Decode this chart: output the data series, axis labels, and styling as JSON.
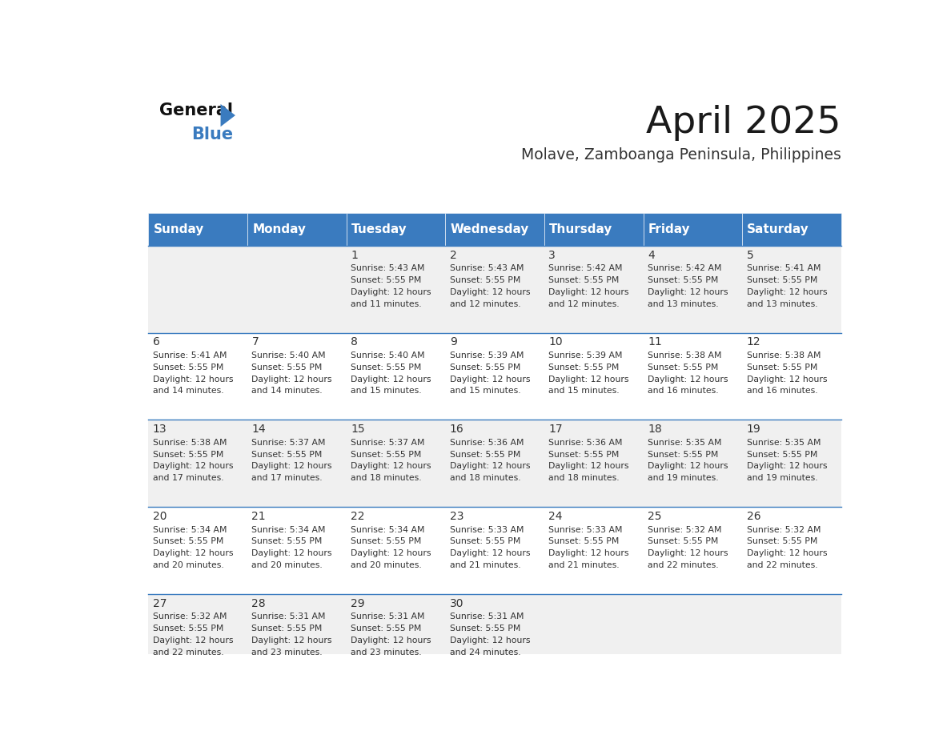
{
  "title": "April 2025",
  "subtitle": "Molave, Zamboanga Peninsula, Philippines",
  "header_bg_color": "#3a7bbf",
  "header_text_color": "#ffffff",
  "weekdays": [
    "Sunday",
    "Monday",
    "Tuesday",
    "Wednesday",
    "Thursday",
    "Friday",
    "Saturday"
  ],
  "row_bg_even": "#f0f0f0",
  "row_bg_odd": "#ffffff",
  "cell_border_color": "#3a7bbf",
  "day_number_color": "#333333",
  "cell_text_color": "#333333",
  "days": [
    {
      "date": 1,
      "col": 2,
      "row": 0,
      "sunrise": "5:43 AM",
      "sunset": "5:55 PM",
      "daylight": "12 hours and 11 minutes."
    },
    {
      "date": 2,
      "col": 3,
      "row": 0,
      "sunrise": "5:43 AM",
      "sunset": "5:55 PM",
      "daylight": "12 hours and 12 minutes."
    },
    {
      "date": 3,
      "col": 4,
      "row": 0,
      "sunrise": "5:42 AM",
      "sunset": "5:55 PM",
      "daylight": "12 hours and 12 minutes."
    },
    {
      "date": 4,
      "col": 5,
      "row": 0,
      "sunrise": "5:42 AM",
      "sunset": "5:55 PM",
      "daylight": "12 hours and 13 minutes."
    },
    {
      "date": 5,
      "col": 6,
      "row": 0,
      "sunrise": "5:41 AM",
      "sunset": "5:55 PM",
      "daylight": "12 hours and 13 minutes."
    },
    {
      "date": 6,
      "col": 0,
      "row": 1,
      "sunrise": "5:41 AM",
      "sunset": "5:55 PM",
      "daylight": "12 hours and 14 minutes."
    },
    {
      "date": 7,
      "col": 1,
      "row": 1,
      "sunrise": "5:40 AM",
      "sunset": "5:55 PM",
      "daylight": "12 hours and 14 minutes."
    },
    {
      "date": 8,
      "col": 2,
      "row": 1,
      "sunrise": "5:40 AM",
      "sunset": "5:55 PM",
      "daylight": "12 hours and 15 minutes."
    },
    {
      "date": 9,
      "col": 3,
      "row": 1,
      "sunrise": "5:39 AM",
      "sunset": "5:55 PM",
      "daylight": "12 hours and 15 minutes."
    },
    {
      "date": 10,
      "col": 4,
      "row": 1,
      "sunrise": "5:39 AM",
      "sunset": "5:55 PM",
      "daylight": "12 hours and 15 minutes."
    },
    {
      "date": 11,
      "col": 5,
      "row": 1,
      "sunrise": "5:38 AM",
      "sunset": "5:55 PM",
      "daylight": "12 hours and 16 minutes."
    },
    {
      "date": 12,
      "col": 6,
      "row": 1,
      "sunrise": "5:38 AM",
      "sunset": "5:55 PM",
      "daylight": "12 hours and 16 minutes."
    },
    {
      "date": 13,
      "col": 0,
      "row": 2,
      "sunrise": "5:38 AM",
      "sunset": "5:55 PM",
      "daylight": "12 hours and 17 minutes."
    },
    {
      "date": 14,
      "col": 1,
      "row": 2,
      "sunrise": "5:37 AM",
      "sunset": "5:55 PM",
      "daylight": "12 hours and 17 minutes."
    },
    {
      "date": 15,
      "col": 2,
      "row": 2,
      "sunrise": "5:37 AM",
      "sunset": "5:55 PM",
      "daylight": "12 hours and 18 minutes."
    },
    {
      "date": 16,
      "col": 3,
      "row": 2,
      "sunrise": "5:36 AM",
      "sunset": "5:55 PM",
      "daylight": "12 hours and 18 minutes."
    },
    {
      "date": 17,
      "col": 4,
      "row": 2,
      "sunrise": "5:36 AM",
      "sunset": "5:55 PM",
      "daylight": "12 hours and 18 minutes."
    },
    {
      "date": 18,
      "col": 5,
      "row": 2,
      "sunrise": "5:35 AM",
      "sunset": "5:55 PM",
      "daylight": "12 hours and 19 minutes."
    },
    {
      "date": 19,
      "col": 6,
      "row": 2,
      "sunrise": "5:35 AM",
      "sunset": "5:55 PM",
      "daylight": "12 hours and 19 minutes."
    },
    {
      "date": 20,
      "col": 0,
      "row": 3,
      "sunrise": "5:34 AM",
      "sunset": "5:55 PM",
      "daylight": "12 hours and 20 minutes."
    },
    {
      "date": 21,
      "col": 1,
      "row": 3,
      "sunrise": "5:34 AM",
      "sunset": "5:55 PM",
      "daylight": "12 hours and 20 minutes."
    },
    {
      "date": 22,
      "col": 2,
      "row": 3,
      "sunrise": "5:34 AM",
      "sunset": "5:55 PM",
      "daylight": "12 hours and 20 minutes."
    },
    {
      "date": 23,
      "col": 3,
      "row": 3,
      "sunrise": "5:33 AM",
      "sunset": "5:55 PM",
      "daylight": "12 hours and 21 minutes."
    },
    {
      "date": 24,
      "col": 4,
      "row": 3,
      "sunrise": "5:33 AM",
      "sunset": "5:55 PM",
      "daylight": "12 hours and 21 minutes."
    },
    {
      "date": 25,
      "col": 5,
      "row": 3,
      "sunrise": "5:32 AM",
      "sunset": "5:55 PM",
      "daylight": "12 hours and 22 minutes."
    },
    {
      "date": 26,
      "col": 6,
      "row": 3,
      "sunrise": "5:32 AM",
      "sunset": "5:55 PM",
      "daylight": "12 hours and 22 minutes."
    },
    {
      "date": 27,
      "col": 0,
      "row": 4,
      "sunrise": "5:32 AM",
      "sunset": "5:55 PM",
      "daylight": "12 hours and 22 minutes."
    },
    {
      "date": 28,
      "col": 1,
      "row": 4,
      "sunrise": "5:31 AM",
      "sunset": "5:55 PM",
      "daylight": "12 hours and 23 minutes."
    },
    {
      "date": 29,
      "col": 2,
      "row": 4,
      "sunrise": "5:31 AM",
      "sunset": "5:55 PM",
      "daylight": "12 hours and 23 minutes."
    },
    {
      "date": 30,
      "col": 3,
      "row": 4,
      "sunrise": "5:31 AM",
      "sunset": "5:55 PM",
      "daylight": "12 hours and 24 minutes."
    }
  ]
}
